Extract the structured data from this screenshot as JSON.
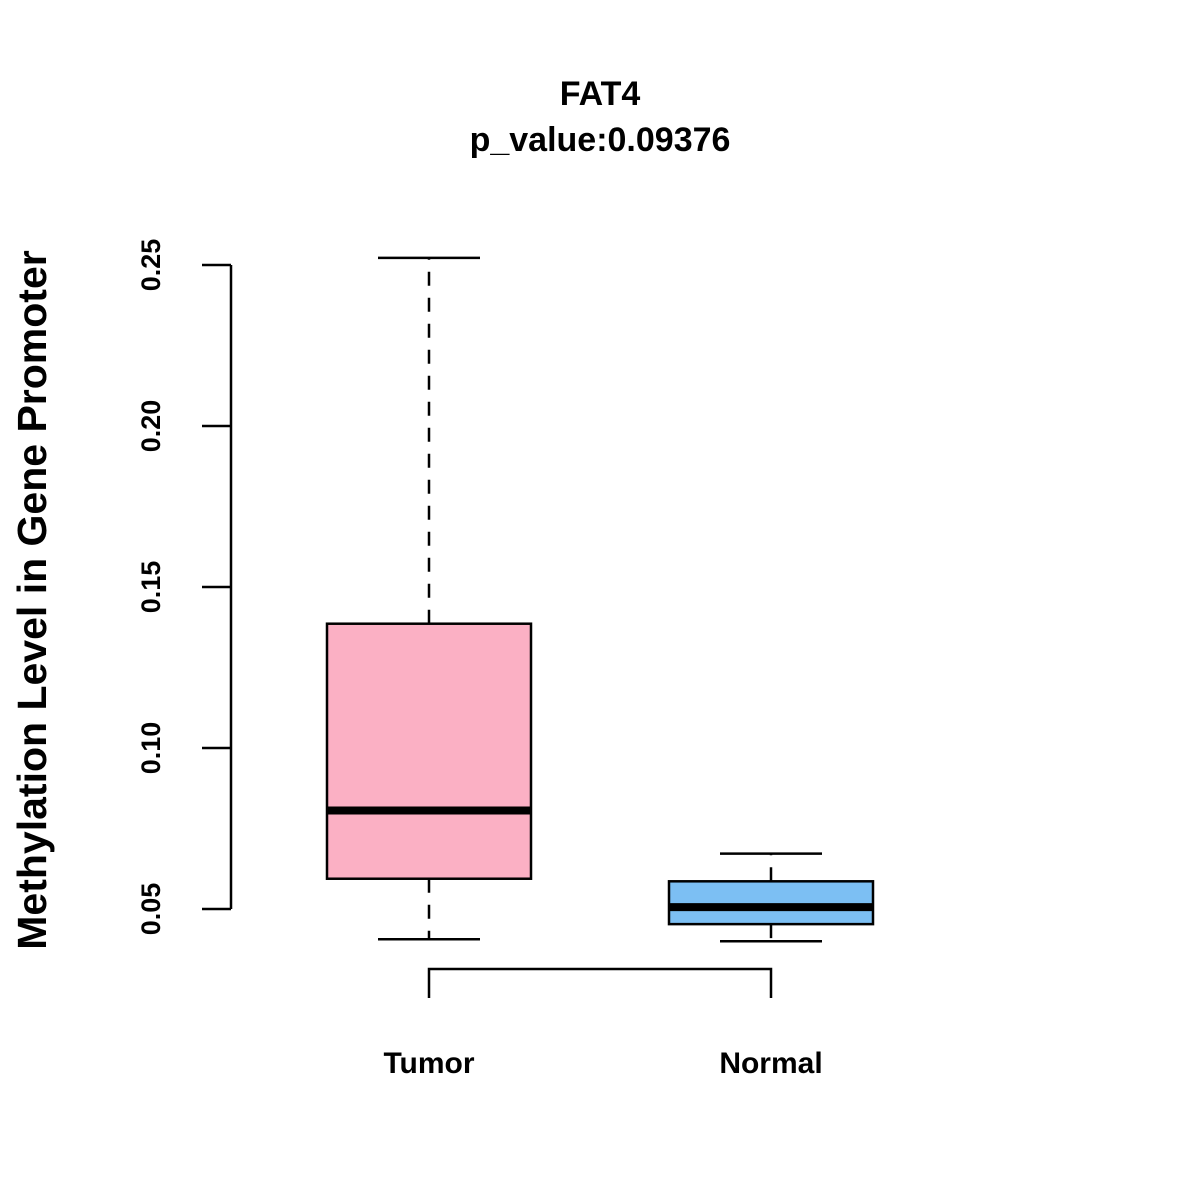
{
  "chart_data": {
    "type": "boxplot",
    "title": "FAT4",
    "subtitle": "p_value:0.09376",
    "xlabel": "",
    "ylabel": "Methylation Level in Gene Promoter",
    "ylim": [
      0.05,
      0.25
    ],
    "yticks": [
      0.05,
      0.1,
      0.15,
      0.2,
      0.25
    ],
    "ytick_labels": [
      "0.05",
      "0.10",
      "0.15",
      "0.20",
      "0.25"
    ],
    "grid": false,
    "groups": [
      {
        "name": "Tumor",
        "whisker_low": 0.0406,
        "q1": 0.0594,
        "median": 0.0806,
        "q3": 0.1386,
        "whisker_high": 0.2522,
        "color": "#fbb0c4"
      },
      {
        "name": "Normal",
        "whisker_low": 0.04,
        "q1": 0.0453,
        "median": 0.0506,
        "q3": 0.0586,
        "whisker_high": 0.0672,
        "color": "#7cbff3"
      }
    ],
    "comparison_bracket": {
      "from": "Tumor",
      "to": "Normal"
    }
  }
}
